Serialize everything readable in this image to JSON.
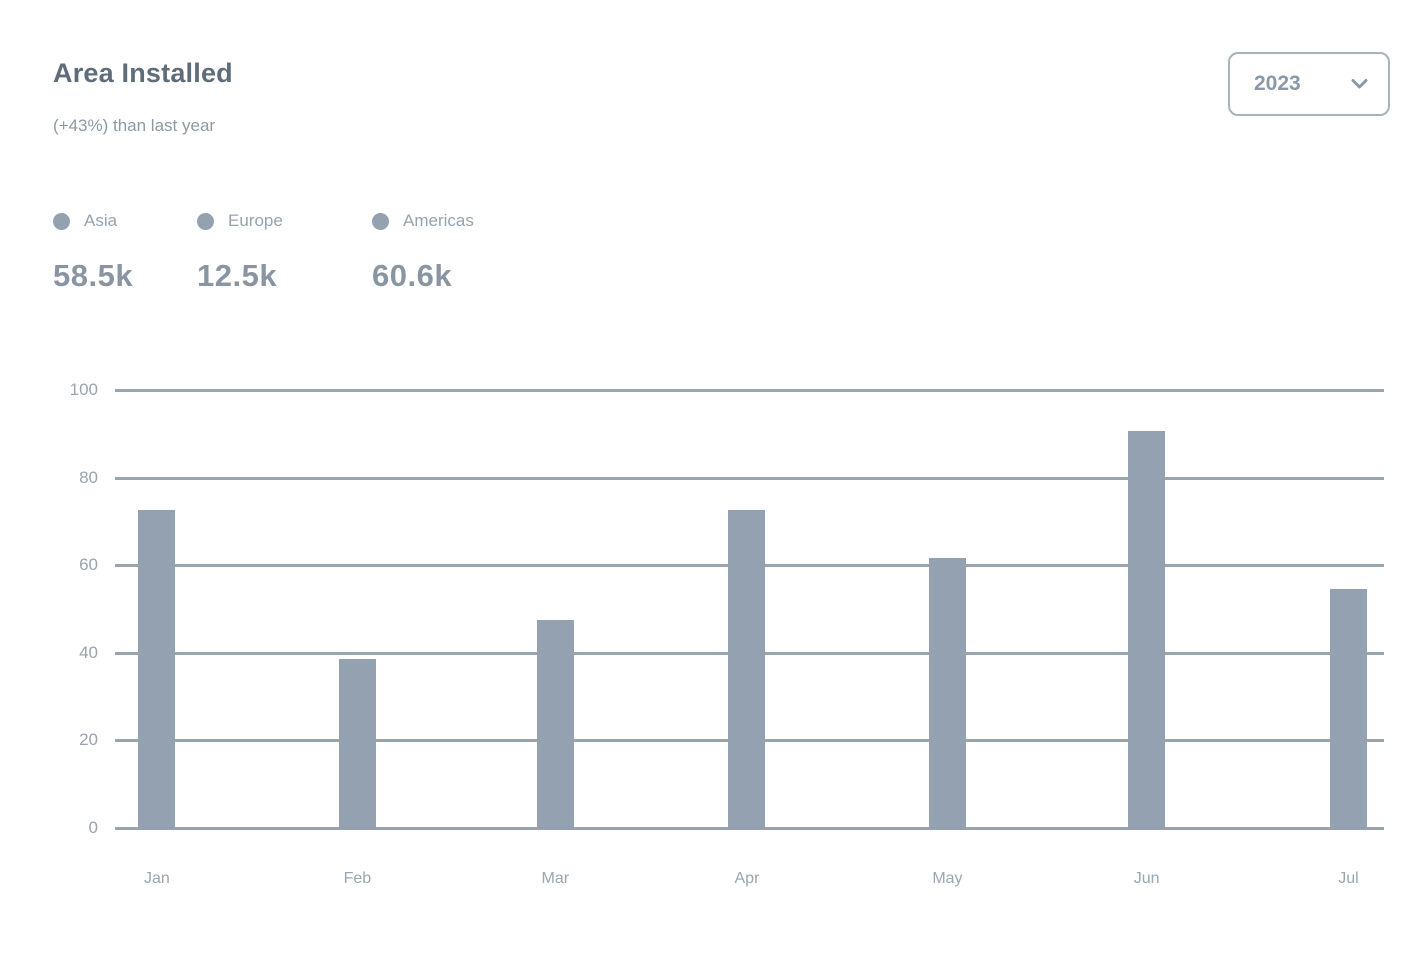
{
  "card": {
    "title": "Area Installed",
    "subtitle": "(+43%) than last year"
  },
  "year_select": {
    "value": "2023",
    "icon": "chevron-down-icon"
  },
  "legend": [
    {
      "label": "Asia",
      "total": "58.5k"
    },
    {
      "label": "Europe",
      "total": "12.5k"
    },
    {
      "label": "Americas",
      "total": "60.6k"
    }
  ],
  "chart_data": {
    "type": "bar",
    "title": "Area Installed",
    "categories": [
      "Jan",
      "Feb",
      "Mar",
      "Apr",
      "May",
      "Jun",
      "Jul"
    ],
    "values": [
      73,
      39,
      48,
      73,
      62,
      91,
      55
    ],
    "xlabel": "",
    "ylabel": "",
    "ylim": [
      0,
      100
    ],
    "yticks": [
      0,
      20,
      40,
      60,
      80,
      100
    ],
    "grid": true,
    "legend_position": "top-left",
    "legend_totals": [
      {
        "label": "Asia",
        "total": "58.5k"
      },
      {
        "label": "Europe",
        "total": "12.5k"
      },
      {
        "label": "Americas",
        "total": "60.6k"
      }
    ]
  },
  "colors": {
    "bar": "#94a1b0",
    "gridline": "#9aa4ad",
    "title_text": "#5f6c79",
    "muted_text": "#8d99a5",
    "legend_value_text": "#8995a3",
    "select_border": "#a9b3bc"
  }
}
